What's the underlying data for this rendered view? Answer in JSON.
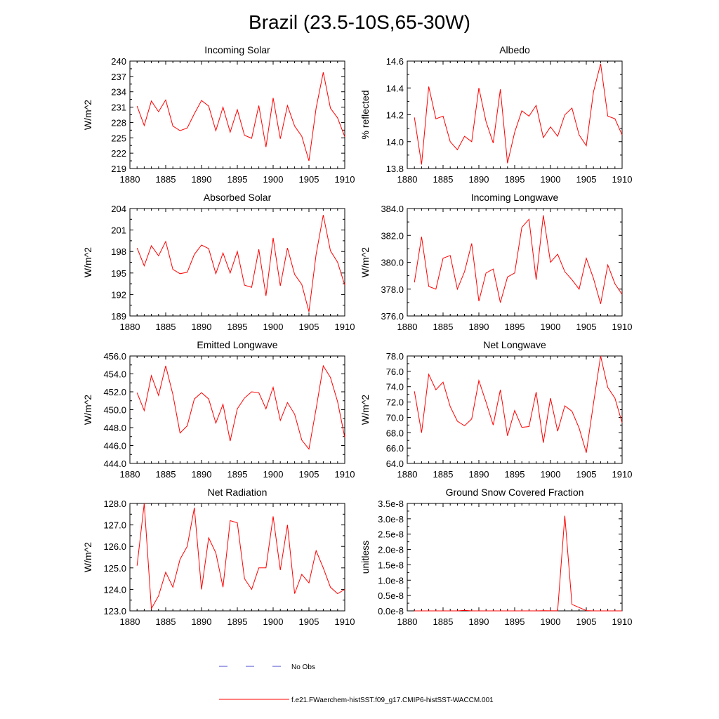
{
  "figure": {
    "title": "Brazil (23.5-10S,65-30W)"
  },
  "legend": {
    "no_obs_label": "No Obs",
    "no_obs_color": "#4a4ad0",
    "model_label": "f.e21.FWaerchem-histSST.f09_g17.CMIP6-histSST-WACCM.001",
    "model_color": "#ff0000"
  },
  "chart_data": [
    {
      "type": "line",
      "title": "Incoming Solar",
      "ylabel": "W/m^2",
      "xlim": [
        1880,
        1910
      ],
      "ylim": [
        219,
        240
      ],
      "xticks": [
        1880,
        1885,
        1890,
        1895,
        1900,
        1905,
        1910
      ],
      "yticks": [
        "219",
        "222",
        "225",
        "228",
        "231",
        "234",
        "237",
        "240"
      ],
      "x": [
        1881,
        1882,
        1883,
        1884,
        1885,
        1886,
        1887,
        1888,
        1889,
        1890,
        1891,
        1892,
        1893,
        1894,
        1895,
        1896,
        1897,
        1898,
        1899,
        1900,
        1901,
        1902,
        1903,
        1904,
        1905,
        1906,
        1907,
        1908,
        1909,
        1910
      ],
      "y": [
        231.2,
        227.4,
        232.2,
        230.1,
        232.4,
        227.3,
        226.4,
        226.9,
        229.7,
        232.3,
        231.2,
        226.4,
        231.0,
        226.1,
        230.5,
        225.5,
        224.9,
        231.3,
        223.2,
        232.8,
        224.8,
        231.3,
        227.3,
        225.3,
        220.5,
        230.8,
        237.8,
        230.8,
        228.9,
        225.2
      ]
    },
    {
      "type": "line",
      "title": "Albedo",
      "ylabel": "% reflected",
      "xlim": [
        1880,
        1910
      ],
      "ylim": [
        13.8,
        14.6
      ],
      "xticks": [
        1880,
        1885,
        1890,
        1895,
        1900,
        1905,
        1910
      ],
      "yticks": [
        "13.8",
        "14.0",
        "14.2",
        "14.4",
        "14.6"
      ],
      "x": [
        1881,
        1882,
        1883,
        1884,
        1885,
        1886,
        1887,
        1888,
        1889,
        1890,
        1891,
        1892,
        1893,
        1894,
        1895,
        1896,
        1897,
        1898,
        1899,
        1900,
        1901,
        1902,
        1903,
        1904,
        1905,
        1906,
        1907,
        1908,
        1909,
        1910
      ],
      "y": [
        14.18,
        13.83,
        14.41,
        14.17,
        14.19,
        14.0,
        13.94,
        14.04,
        14.0,
        14.4,
        14.15,
        13.99,
        14.39,
        13.84,
        14.07,
        14.23,
        14.19,
        14.27,
        14.03,
        14.11,
        14.04,
        14.2,
        14.25,
        14.05,
        13.97,
        14.37,
        14.58,
        14.19,
        14.17,
        14.05
      ]
    },
    {
      "type": "line",
      "title": "Absorbed Solar",
      "ylabel": "W/m^2",
      "xlim": [
        1880,
        1910
      ],
      "ylim": [
        189,
        204
      ],
      "xticks": [
        1880,
        1885,
        1890,
        1895,
        1900,
        1905,
        1910
      ],
      "yticks": [
        "189",
        "192",
        "195",
        "198",
        "201",
        "204"
      ],
      "x": [
        1881,
        1882,
        1883,
        1884,
        1885,
        1886,
        1887,
        1888,
        1889,
        1890,
        1891,
        1892,
        1893,
        1894,
        1895,
        1896,
        1897,
        1898,
        1899,
        1900,
        1901,
        1902,
        1903,
        1904,
        1905,
        1906,
        1907,
        1908,
        1909,
        1910
      ],
      "y": [
        198.5,
        196.0,
        198.8,
        197.4,
        199.4,
        195.5,
        194.9,
        195.1,
        197.6,
        198.9,
        198.4,
        194.9,
        197.8,
        195.0,
        198.0,
        193.3,
        193.0,
        198.3,
        191.8,
        199.9,
        193.2,
        198.5,
        194.8,
        193.4,
        189.6,
        197.6,
        203.1,
        198.1,
        196.5,
        193.3
      ]
    },
    {
      "type": "line",
      "title": "Incoming Longwave",
      "ylabel": "W/m^2",
      "xlim": [
        1880,
        1910
      ],
      "ylim": [
        376,
        384
      ],
      "xticks": [
        1880,
        1885,
        1890,
        1895,
        1900,
        1905,
        1910
      ],
      "yticks": [
        "376.0",
        "378.0",
        "380.0",
        "382.0",
        "384.0"
      ],
      "x": [
        1881,
        1882,
        1883,
        1884,
        1885,
        1886,
        1887,
        1888,
        1889,
        1890,
        1891,
        1892,
        1893,
        1894,
        1895,
        1896,
        1897,
        1898,
        1899,
        1900,
        1901,
        1902,
        1903,
        1904,
        1905,
        1906,
        1907,
        1908,
        1909,
        1910
      ],
      "y": [
        378.5,
        381.9,
        378.2,
        378.0,
        380.3,
        380.5,
        378.0,
        379.3,
        381.4,
        377.1,
        379.2,
        379.5,
        377.0,
        378.9,
        379.2,
        382.6,
        383.2,
        378.7,
        383.5,
        380.0,
        380.6,
        379.3,
        378.7,
        378.0,
        380.3,
        378.8,
        376.9,
        379.8,
        378.4,
        377.6
      ]
    },
    {
      "type": "line",
      "title": "Emitted Longwave",
      "ylabel": "W/m^2",
      "xlim": [
        1880,
        1910
      ],
      "ylim": [
        444,
        456
      ],
      "xticks": [
        1880,
        1885,
        1890,
        1895,
        1900,
        1905,
        1910
      ],
      "yticks": [
        "444.0",
        "446.0",
        "448.0",
        "450.0",
        "452.0",
        "454.0",
        "456.0"
      ],
      "x": [
        1881,
        1882,
        1883,
        1884,
        1885,
        1886,
        1887,
        1888,
        1889,
        1890,
        1891,
        1892,
        1893,
        1894,
        1895,
        1896,
        1897,
        1898,
        1899,
        1900,
        1901,
        1902,
        1903,
        1904,
        1905,
        1906,
        1907,
        1908,
        1909,
        1910
      ],
      "y": [
        451.9,
        449.9,
        453.8,
        451.6,
        454.9,
        451.7,
        447.4,
        448.2,
        451.2,
        451.9,
        451.2,
        448.5,
        450.6,
        446.5,
        450.1,
        451.3,
        452.0,
        451.9,
        450.1,
        452.5,
        448.8,
        450.8,
        449.5,
        446.6,
        445.6,
        450.1,
        454.9,
        453.6,
        450.9,
        446.9
      ]
    },
    {
      "type": "line",
      "title": "Net Longwave",
      "ylabel": "W/m^2",
      "xlim": [
        1880,
        1910
      ],
      "ylim": [
        64,
        78
      ],
      "xticks": [
        1880,
        1885,
        1890,
        1895,
        1900,
        1905,
        1910
      ],
      "yticks": [
        "64.0",
        "66.0",
        "68.0",
        "70.0",
        "72.0",
        "74.0",
        "76.0",
        "78.0"
      ],
      "x": [
        1881,
        1882,
        1883,
        1884,
        1885,
        1886,
        1887,
        1888,
        1889,
        1890,
        1891,
        1892,
        1893,
        1894,
        1895,
        1896,
        1897,
        1898,
        1899,
        1900,
        1901,
        1902,
        1903,
        1904,
        1905,
        1906,
        1907,
        1908,
        1909,
        1910
      ],
      "y": [
        73.4,
        68.0,
        75.6,
        73.6,
        74.6,
        71.4,
        69.5,
        68.9,
        69.8,
        74.8,
        72.0,
        69.0,
        73.6,
        67.6,
        70.9,
        68.7,
        68.8,
        73.3,
        66.7,
        72.5,
        68.2,
        71.5,
        70.8,
        68.6,
        65.4,
        71.8,
        78.0,
        73.9,
        72.5,
        69.3
      ]
    },
    {
      "type": "line",
      "title": "Net Radiation",
      "ylabel": "W/m^2",
      "xlim": [
        1880,
        1910
      ],
      "ylim": [
        123,
        128
      ],
      "xticks": [
        1880,
        1885,
        1890,
        1895,
        1900,
        1905,
        1910
      ],
      "yticks": [
        "123.0",
        "124.0",
        "125.0",
        "126.0",
        "127.0",
        "128.0"
      ],
      "x": [
        1881,
        1882,
        1883,
        1884,
        1885,
        1886,
        1887,
        1888,
        1889,
        1890,
        1891,
        1892,
        1893,
        1894,
        1895,
        1896,
        1897,
        1898,
        1899,
        1900,
        1901,
        1902,
        1903,
        1904,
        1905,
        1906,
        1907,
        1908,
        1909,
        1910
      ],
      "y": [
        125.1,
        128.0,
        123.1,
        123.7,
        124.8,
        124.1,
        125.4,
        126.0,
        127.8,
        124.0,
        126.4,
        125.7,
        124.1,
        127.2,
        127.1,
        124.5,
        124.0,
        125.0,
        125.0,
        127.4,
        124.9,
        127.0,
        123.8,
        124.7,
        124.3,
        125.8,
        125.0,
        124.1,
        123.8,
        124.0
      ]
    },
    {
      "type": "line",
      "title": "Ground Snow Covered Fraction",
      "ylabel": "unitless",
      "xlim": [
        1880,
        1910
      ],
      "ylim": [
        0,
        3.5e-08
      ],
      "xticks": [
        1880,
        1885,
        1890,
        1895,
        1900,
        1905,
        1910
      ],
      "yticks": [
        "0.0e-8",
        "0.5e-8",
        "1.0e-8",
        "1.5e-8",
        "2.0e-8",
        "2.5e-8",
        "3.0e-8",
        "3.5e-8"
      ],
      "x": [
        1881,
        1882,
        1883,
        1884,
        1885,
        1886,
        1887,
        1888,
        1889,
        1890,
        1891,
        1892,
        1893,
        1894,
        1895,
        1896,
        1897,
        1898,
        1899,
        1900,
        1901,
        1902,
        1903,
        1904,
        1905,
        1906,
        1907,
        1908,
        1909,
        1910
      ],
      "y": [
        0,
        0,
        0,
        0,
        0,
        0,
        0,
        1.5e-10,
        0,
        0,
        0,
        0,
        1e-11,
        0,
        0,
        1e-11,
        1e-11,
        0,
        6e-11,
        3e-11,
        2e-11,
        3.1e-08,
        2.1e-09,
        1.1e-09,
        1e-10,
        0,
        0,
        0,
        0,
        0
      ]
    }
  ]
}
